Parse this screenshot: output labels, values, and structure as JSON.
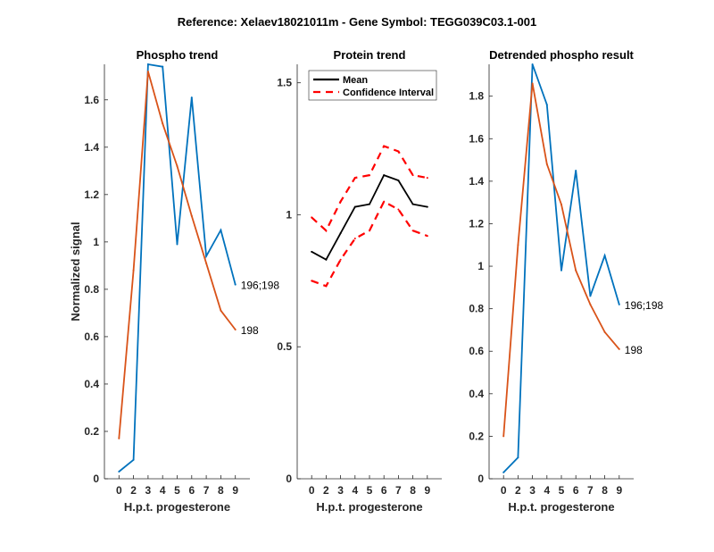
{
  "figure_title": "Reference:  Xelaev18021011m - Gene Symbol:  TEGG039C03.1-001",
  "chart_data": [
    {
      "type": "line",
      "title": "Phospho trend",
      "xlabel": "H.p.t. progesterone",
      "ylabel": "Normalized signal",
      "x_tick_labels": [
        "0",
        "2",
        "3",
        "4",
        "5",
        "6",
        "7",
        "8",
        "9"
      ],
      "y_ticks": [
        0,
        0.2,
        0.4,
        0.6,
        0.8,
        1,
        1.2,
        1.4,
        1.6
      ],
      "y_tick_labels": [
        "0",
        "0.2",
        "0.4",
        "0.6",
        "0.8",
        "1",
        "1.2",
        "1.4",
        "1.6"
      ],
      "ylim": [
        0,
        1.75
      ],
      "series": [
        {
          "name": "196;198",
          "color": "#0072BD",
          "dash": false,
          "values": [
            0.03,
            0.08,
            1.75,
            1.74,
            0.99,
            1.61,
            0.94,
            1.05,
            0.82
          ]
        },
        {
          "name": "198",
          "color": "#D95319",
          "dash": false,
          "values": [
            0.17,
            0.88,
            1.72,
            1.5,
            1.32,
            1.11,
            0.91,
            0.71,
            0.63
          ]
        }
      ],
      "end_labels": true
    },
    {
      "type": "line",
      "title": "Protein trend",
      "xlabel": "H.p.t. progesterone",
      "ylabel": "",
      "x_tick_labels": [
        "0",
        "2",
        "3",
        "4",
        "5",
        "6",
        "7",
        "8",
        "9"
      ],
      "y_ticks": [
        0,
        0.5,
        1,
        1.5
      ],
      "y_tick_labels": [
        "0",
        "0.5",
        "1",
        "1.5"
      ],
      "ylim": [
        0,
        1.57
      ],
      "legend": {
        "position": "top-left",
        "entries": [
          "Mean",
          "Confidence Interval"
        ]
      },
      "series": [
        {
          "name": "Mean",
          "color": "#000000",
          "dash": false,
          "values": [
            0.86,
            0.83,
            0.93,
            1.03,
            1.04,
            1.15,
            1.13,
            1.04,
            1.03
          ]
        },
        {
          "name": "Confidence Interval (upper)",
          "color": "#FF0000",
          "dash": true,
          "values": [
            0.99,
            0.94,
            1.05,
            1.14,
            1.15,
            1.26,
            1.24,
            1.15,
            1.14
          ]
        },
        {
          "name": "Confidence Interval (lower)",
          "color": "#FF0000",
          "dash": true,
          "values": [
            0.75,
            0.73,
            0.83,
            0.91,
            0.94,
            1.05,
            1.02,
            0.94,
            0.92
          ]
        }
      ],
      "end_labels": false
    },
    {
      "type": "line",
      "title": "Detrended phospho result",
      "xlabel": "H.p.t. progesterone",
      "ylabel": "",
      "x_tick_labels": [
        "0",
        "2",
        "3",
        "4",
        "5",
        "6",
        "7",
        "8",
        "9"
      ],
      "y_ticks": [
        0,
        0.2,
        0.4,
        0.6,
        0.8,
        1,
        1.2,
        1.4,
        1.6,
        1.8
      ],
      "y_tick_labels": [
        "0",
        "0.2",
        "0.4",
        "0.6",
        "0.8",
        "1",
        "1.2",
        "1.4",
        "1.6",
        "1.8"
      ],
      "ylim": [
        0,
        1.95
      ],
      "series": [
        {
          "name": "196;198",
          "color": "#0072BD",
          "dash": false,
          "values": [
            0.03,
            0.1,
            1.95,
            1.76,
            0.98,
            1.45,
            0.86,
            1.05,
            0.82
          ]
        },
        {
          "name": "198",
          "color": "#D95319",
          "dash": false,
          "values": [
            0.2,
            1.1,
            1.86,
            1.48,
            1.29,
            0.98,
            0.82,
            0.69,
            0.61
          ]
        }
      ],
      "end_labels": true
    }
  ]
}
